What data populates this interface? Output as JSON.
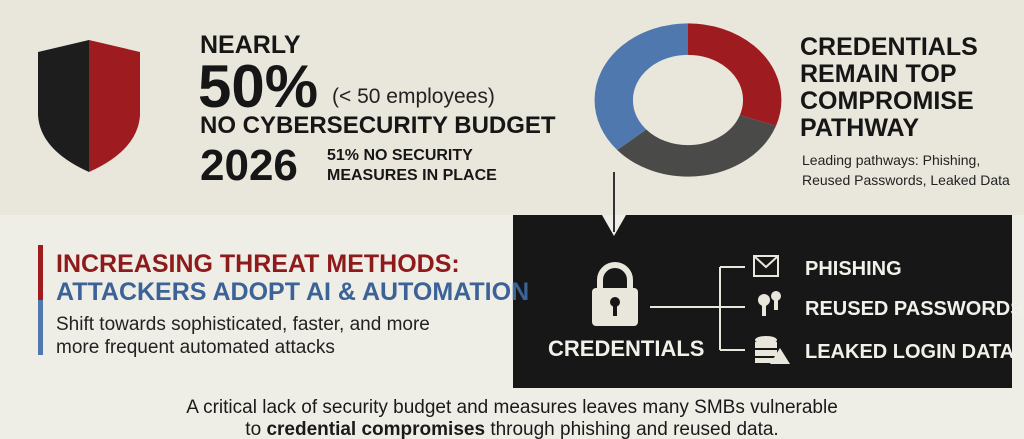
{
  "stats": {
    "lead": "NEARLY",
    "big": "50%",
    "note": "(< 50 employees)",
    "headline": "NO CYBERSECURITY BUDGET",
    "year": "2026",
    "sub_line1": "51% NO SECURITY",
    "sub_line2": "MEASURES IN PLACE"
  },
  "pathway": {
    "title_lines": [
      "CREDENTIALS",
      "REMAIN TOP",
      "COMPROMISE",
      "PATHWAY"
    ],
    "desc_lines": [
      "Leading pathways: Phishing,",
      "Reused Passwords, Leaked Data"
    ]
  },
  "threats": {
    "title": "INCREASING THREAT METHODS:",
    "subtitle": "ATTACKERS ADOPT AI & AUTOMATION",
    "body_lines": [
      "Shift towards sophisticated, faster, and more",
      "more frequent automated attacks"
    ]
  },
  "diagram": {
    "source": "CREDENTIALS",
    "items": [
      "PHISHING",
      "REUSED PASSWORDS",
      "LEAKED LOGIN DATA"
    ]
  },
  "footer": {
    "line1": "A critical lack of security budget and measures leaves many SMBs vulnerable",
    "line2_start": "to",
    "line2_bold": "credential compromises",
    "line2_end": "through phishing and reused data."
  }
}
